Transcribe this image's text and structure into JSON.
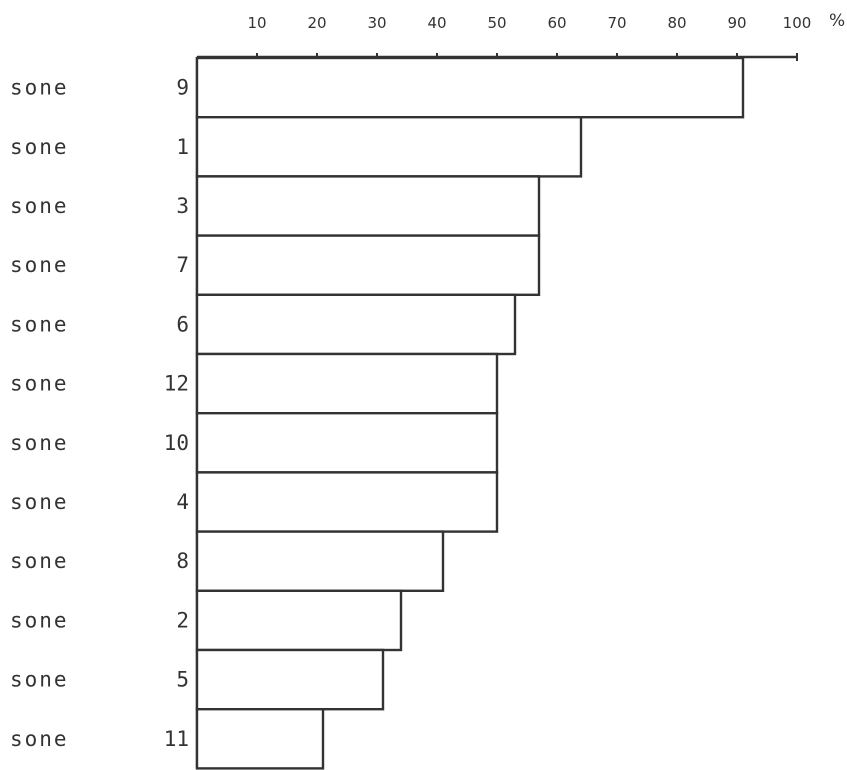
{
  "chart_data": {
    "type": "bar",
    "orientation": "horizontal",
    "unit": "%",
    "xlim": [
      0,
      100
    ],
    "xticks": [
      10,
      20,
      30,
      40,
      50,
      60,
      70,
      80,
      90,
      100
    ],
    "categories": [
      {
        "word": "sone",
        "num": "9"
      },
      {
        "word": "sone",
        "num": "1"
      },
      {
        "word": "sone",
        "num": "3"
      },
      {
        "word": "sone",
        "num": "7"
      },
      {
        "word": "sone",
        "num": "6"
      },
      {
        "word": "sone",
        "num": "12"
      },
      {
        "word": "sone",
        "num": "10"
      },
      {
        "word": "sone",
        "num": "4"
      },
      {
        "word": "sone",
        "num": "8"
      },
      {
        "word": "sone",
        "num": "2"
      },
      {
        "word": "sone",
        "num": "5"
      },
      {
        "word": "sone",
        "num": "11"
      }
    ],
    "values": [
      91,
      64,
      57,
      57,
      53,
      50,
      50,
      50,
      41,
      34,
      31,
      21
    ],
    "grid": false,
    "legend": "none",
    "colors": {
      "stroke": "#333333",
      "fill": "#ffffff"
    }
  }
}
